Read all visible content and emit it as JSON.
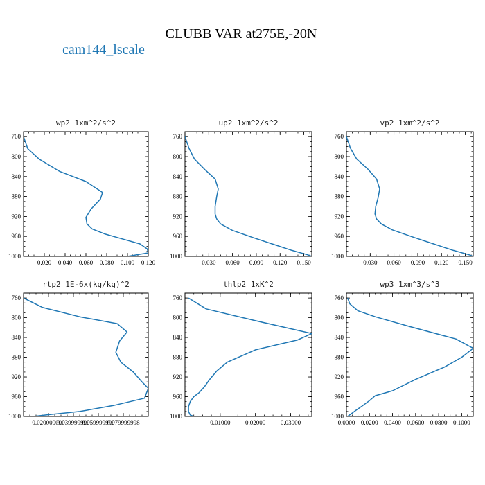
{
  "figure": {
    "title": "CLUBB VAR at275E,-20N",
    "legend": {
      "label": "cam144_lscale",
      "marker": "—",
      "color": "#1f77b4"
    }
  },
  "chart_data": [
    {
      "type": "line",
      "title": "wp2  1xm^2/s^2",
      "xlim": [
        0.0,
        0.12
      ],
      "ylim": [
        1000,
        750
      ],
      "xticks": [
        0.02,
        0.04,
        0.06,
        0.08,
        0.1,
        0.12
      ],
      "xtick_labels": [
        "0.020",
        "0.040",
        "0.060",
        "0.080",
        "0.100",
        "0.120"
      ],
      "yticks": [
        760,
        800,
        840,
        880,
        920,
        960,
        1000
      ],
      "ytick_labels": [
        "760",
        "800",
        "840",
        "880",
        "920",
        "960",
        "1000"
      ],
      "series": [
        {
          "color": "#1f77b4",
          "x": [
            0.0,
            0.004,
            0.015,
            0.035,
            0.06,
            0.076,
            0.074,
            0.065,
            0.06,
            0.061,
            0.066,
            0.078,
            0.095,
            0.112,
            0.119,
            0.12,
            0.1
          ],
          "y": [
            760,
            784,
            805,
            830,
            850,
            872,
            885,
            905,
            922,
            935,
            945,
            955,
            965,
            975,
            985,
            993,
            1000
          ]
        }
      ]
    },
    {
      "type": "line",
      "title": "up2  1xm^2/s^2",
      "xlim": [
        0.0,
        0.16
      ],
      "ylim": [
        1000,
        750
      ],
      "xticks": [
        0.03,
        0.06,
        0.09,
        0.12,
        0.15
      ],
      "xtick_labels": [
        "0.030",
        "0.060",
        "0.090",
        "0.120",
        "0.150"
      ],
      "yticks": [
        760,
        800,
        840,
        880,
        920,
        960,
        1000
      ],
      "ytick_labels": [
        "760",
        "800",
        "840",
        "880",
        "920",
        "960",
        "1000"
      ],
      "series": [
        {
          "color": "#1f77b4",
          "x": [
            0.0,
            0.005,
            0.012,
            0.025,
            0.038,
            0.042,
            0.04,
            0.038,
            0.038,
            0.04,
            0.045,
            0.06,
            0.085,
            0.11,
            0.135,
            0.155,
            0.16
          ],
          "y": [
            760,
            783,
            805,
            826,
            845,
            865,
            880,
            900,
            915,
            925,
            935,
            948,
            962,
            975,
            988,
            997,
            1000
          ]
        }
      ]
    },
    {
      "type": "line",
      "title": "vp2  1xm^2/s^2",
      "xlim": [
        0.0,
        0.16
      ],
      "ylim": [
        1000,
        750
      ],
      "xticks": [
        0.03,
        0.06,
        0.09,
        0.12,
        0.15
      ],
      "xtick_labels": [
        "0.030",
        "0.060",
        "0.090",
        "0.120",
        "0.150"
      ],
      "yticks": [
        760,
        800,
        840,
        880,
        920,
        960,
        1000
      ],
      "ytick_labels": [
        "760",
        "800",
        "840",
        "880",
        "920",
        "960",
        "1000"
      ],
      "series": [
        {
          "color": "#1f77b4",
          "x": [
            0.0,
            0.005,
            0.013,
            0.027,
            0.038,
            0.042,
            0.04,
            0.037,
            0.036,
            0.038,
            0.044,
            0.058,
            0.085,
            0.11,
            0.135,
            0.155,
            0.16
          ],
          "y": [
            760,
            783,
            805,
            825,
            845,
            865,
            882,
            900,
            915,
            925,
            935,
            947,
            962,
            975,
            988,
            997,
            1000
          ]
        }
      ]
    },
    {
      "type": "line",
      "title": "rtp2  1E-6x(kg/kg)^2",
      "xlim": [
        0.0,
        0.1
      ],
      "ylim": [
        1000,
        750
      ],
      "xticks": [
        0.02,
        0.04,
        0.06,
        0.08
      ],
      "xtick_labels": [
        "0.020000000",
        "0.039999999",
        "0.059999999",
        "0.079999998"
      ],
      "yticks": [
        760,
        800,
        840,
        880,
        920,
        960,
        1000
      ],
      "ytick_labels": [
        "760",
        "800",
        "840",
        "880",
        "920",
        "960",
        "1000"
      ],
      "series": [
        {
          "color": "#1f77b4",
          "x": [
            0.0,
            0.015,
            0.045,
            0.075,
            0.083,
            0.077,
            0.074,
            0.078,
            0.088,
            0.095,
            0.1,
            0.097,
            0.072,
            0.045,
            0.018,
            0.008,
            0.006
          ],
          "y": [
            760,
            779,
            798,
            812,
            829,
            847,
            870,
            890,
            910,
            930,
            943,
            963,
            978,
            990,
            997,
            1000,
            1000
          ]
        }
      ]
    },
    {
      "type": "line",
      "title": "thlp2  1xK^2",
      "xlim": [
        0.0,
        0.036
      ],
      "ylim": [
        1000,
        750
      ],
      "xticks": [
        0.01,
        0.02,
        0.03
      ],
      "xtick_labels": [
        "0.01000",
        "0.02000",
        "0.03000"
      ],
      "yticks": [
        760,
        800,
        840,
        880,
        920,
        960,
        1000
      ],
      "ytick_labels": [
        "760",
        "800",
        "840",
        "880",
        "920",
        "960",
        "1000"
      ],
      "series": [
        {
          "color": "#1f77b4",
          "x": [
            0.001,
            0.006,
            0.02,
            0.036,
            0.032,
            0.02,
            0.012,
            0.009,
            0.007,
            0.0055,
            0.004,
            0.0025,
            0.0015,
            0.001,
            0.001,
            0.0015,
            0.0025
          ],
          "y": [
            760,
            782,
            806,
            832,
            845,
            865,
            890,
            908,
            925,
            940,
            952,
            960,
            970,
            980,
            990,
            997,
            1000
          ]
        }
      ]
    },
    {
      "type": "line",
      "title": "wp3  1xm^3/s^3",
      "xlim": [
        0.0,
        0.11
      ],
      "ylim": [
        1000,
        750
      ],
      "xticks": [
        0.0,
        0.02,
        0.04,
        0.06,
        0.08,
        0.1
      ],
      "xtick_labels": [
        "0.0000",
        "0.0200",
        "0.0400",
        "0.0600",
        "0.0800",
        "0.1000"
      ],
      "yticks": [
        760,
        800,
        840,
        880,
        920,
        960,
        1000
      ],
      "ytick_labels": [
        "760",
        "800",
        "840",
        "880",
        "920",
        "960",
        "1000"
      ],
      "series": [
        {
          "color": "#1f77b4",
          "x": [
            0.001,
            0.003,
            0.01,
            0.025,
            0.055,
            0.095,
            0.11,
            0.1,
            0.085,
            0.06,
            0.04,
            0.025,
            0.02,
            0.013,
            0.008,
            0.004,
            0.001
          ],
          "y": [
            760,
            772,
            786,
            798,
            818,
            843,
            862,
            880,
            900,
            925,
            948,
            958,
            968,
            980,
            988,
            995,
            1000
          ]
        }
      ]
    }
  ]
}
